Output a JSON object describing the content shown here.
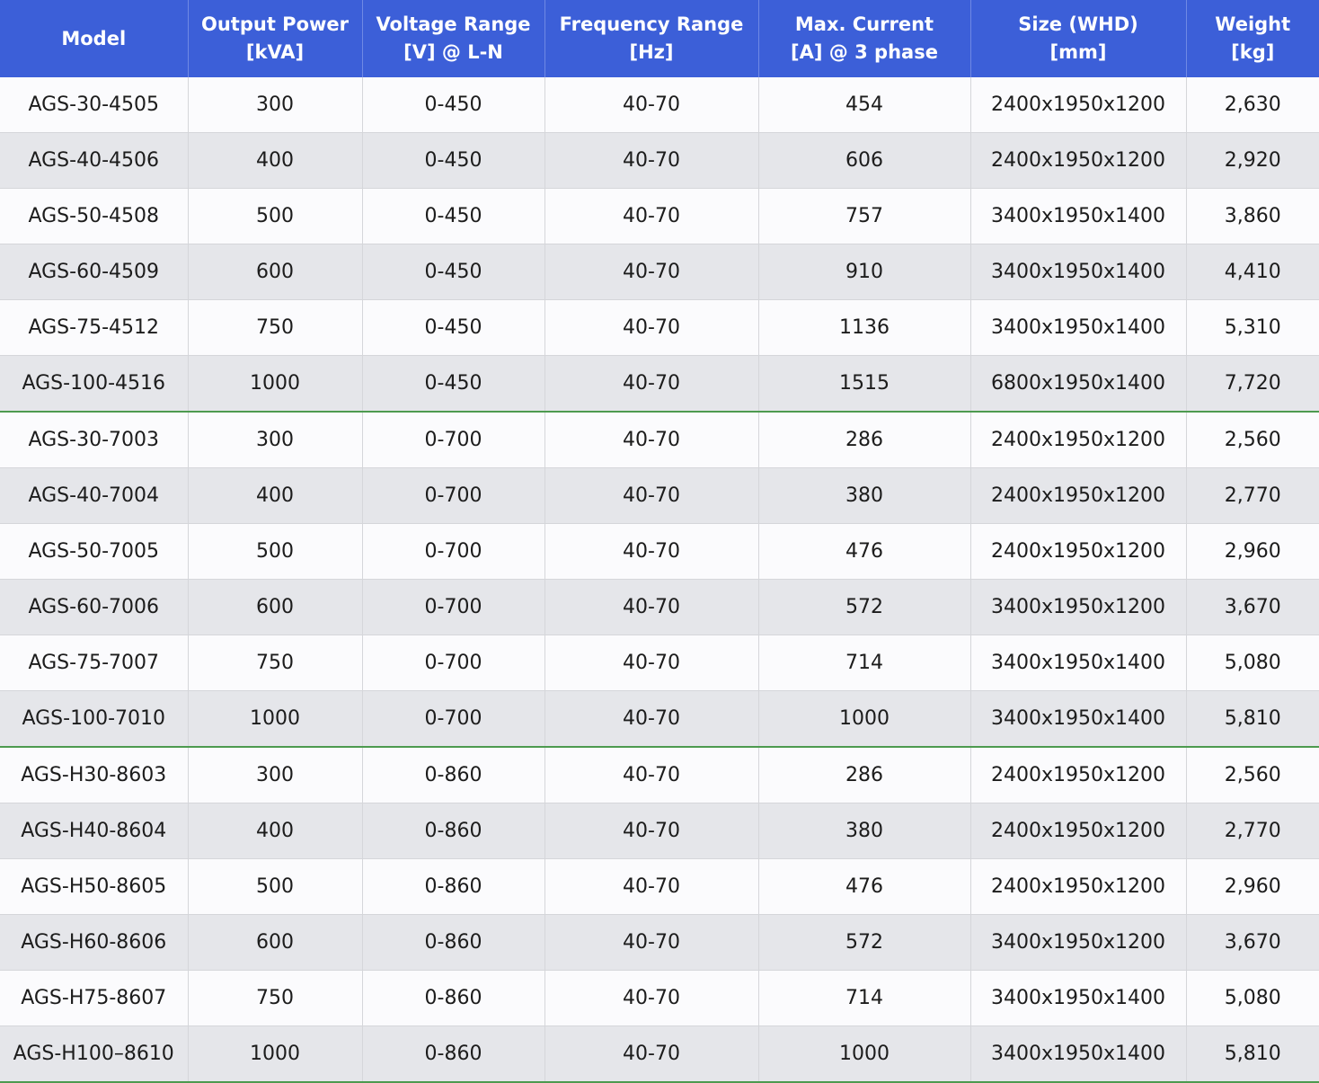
{
  "accent_color": "#3c5fd8",
  "group_divider_color": "#4d9a4f",
  "headers": [
    [
      "Model"
    ],
    [
      "Output Power",
      "[kVA]"
    ],
    [
      "Voltage Range",
      "[V] @ L-N"
    ],
    [
      "Frequency Range",
      "[Hz]"
    ],
    [
      "Max. Current",
      "[A] @ 3 phase"
    ],
    [
      "Size (WHD)",
      "[mm]"
    ],
    [
      "Weight",
      "[kg]"
    ]
  ],
  "rows": [
    [
      "AGS-30-4505",
      "300",
      "0-450",
      "40-70",
      "454",
      "2400x1950x1200",
      "2,630"
    ],
    [
      "AGS-40-4506",
      "400",
      "0-450",
      "40-70",
      "606",
      "2400x1950x1200",
      "2,920"
    ],
    [
      "AGS-50-4508",
      "500",
      "0-450",
      "40-70",
      "757",
      "3400x1950x1400",
      "3,860"
    ],
    [
      "AGS-60-4509",
      "600",
      "0-450",
      "40-70",
      "910",
      "3400x1950x1400",
      "4,410"
    ],
    [
      "AGS-75-4512",
      "750",
      "0-450",
      "40-70",
      "1136",
      "3400x1950x1400",
      "5,310"
    ],
    [
      "AGS-100-4516",
      "1000",
      "0-450",
      "40-70",
      "1515",
      "6800x1950x1400",
      "7,720"
    ],
    [
      "AGS-30-7003",
      "300",
      "0-700",
      "40-70",
      "286",
      "2400x1950x1200",
      "2,560"
    ],
    [
      "AGS-40-7004",
      "400",
      "0-700",
      "40-70",
      "380",
      "2400x1950x1200",
      "2,770"
    ],
    [
      "AGS-50-7005",
      "500",
      "0-700",
      "40-70",
      "476",
      "2400x1950x1200",
      "2,960"
    ],
    [
      "AGS-60-7006",
      "600",
      "0-700",
      "40-70",
      "572",
      "3400x1950x1200",
      "3,670"
    ],
    [
      "AGS-75-7007",
      "750",
      "0-700",
      "40-70",
      "714",
      "3400x1950x1400",
      "5,080"
    ],
    [
      "AGS-100-7010",
      "1000",
      "0-700",
      "40-70",
      "1000",
      "3400x1950x1400",
      "5,810"
    ],
    [
      "AGS-H30-8603",
      "300",
      "0-860",
      "40-70",
      "286",
      "2400x1950x1200",
      "2,560"
    ],
    [
      "AGS-H40-8604",
      "400",
      "0-860",
      "40-70",
      "380",
      "2400x1950x1200",
      "2,770"
    ],
    [
      "AGS-H50-8605",
      "500",
      "0-860",
      "40-70",
      "476",
      "2400x1950x1200",
      "2,960"
    ],
    [
      "AGS-H60-8606",
      "600",
      "0-860",
      "40-70",
      "572",
      "3400x1950x1200",
      "3,670"
    ],
    [
      "AGS-H75-8607",
      "750",
      "0-860",
      "40-70",
      "714",
      "3400x1950x1400",
      "5,080"
    ],
    [
      "AGS-H100–8610",
      "1000",
      "0-860",
      "40-70",
      "1000",
      "3400x1950x1400",
      "5,810"
    ]
  ],
  "group_end_rows": [
    5,
    11,
    17
  ]
}
